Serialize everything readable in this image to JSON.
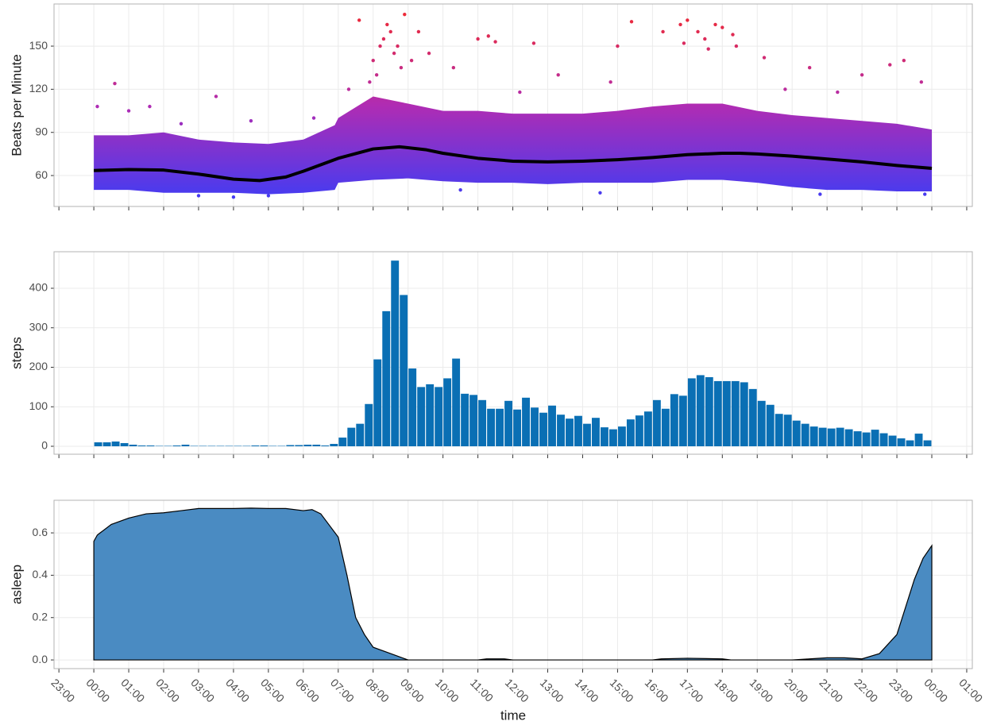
{
  "chart_data": [
    {
      "type": "scatter",
      "ylabel": "Beats per Minute",
      "xlim": [
        -1.14,
        25.16
      ],
      "ylim": [
        38.5,
        179.3
      ],
      "xticks": [
        -1,
        0,
        1,
        2,
        3,
        4,
        5,
        6,
        7,
        8,
        9,
        10,
        11,
        12,
        13,
        14,
        15,
        16,
        17,
        18,
        19,
        20,
        21,
        22,
        23,
        24,
        25
      ],
      "yticks": [
        60,
        90,
        120,
        150
      ],
      "grid": true,
      "color_scale": [
        "#3b3df7",
        "#b02cb3",
        "#f42a2a"
      ],
      "points": {
        "x": [
          8.2,
          8.5,
          8.4,
          8.6,
          8.0,
          8.8,
          7.6,
          8.9,
          9.3,
          9.6,
          11.0,
          11.3,
          11.5,
          12.6,
          15.0,
          15.4,
          16.3,
          16.8,
          17.0,
          17.3,
          17.5,
          17.8,
          18.0,
          18.3,
          18.4,
          19.2,
          20.5,
          22.0,
          22.8,
          23.2,
          23.7,
          0.1,
          0.6,
          1.0,
          1.6,
          3.5,
          4.5,
          6.3,
          7.3,
          10.3,
          13.3,
          14.8,
          21.3,
          4.0,
          5.0,
          3.0,
          10.5,
          14.5,
          20.8,
          23.8,
          8.3,
          8.7,
          8.1,
          17.6,
          16.9,
          9.1,
          7.9,
          12.2,
          19.8,
          2.5
        ],
        "y": [
          150,
          160,
          165,
          145,
          140,
          135,
          168,
          172,
          160,
          145,
          155,
          157,
          153,
          152,
          150,
          167,
          160,
          165,
          168,
          160,
          155,
          165,
          163,
          158,
          150,
          142,
          135,
          130,
          137,
          140,
          125,
          108,
          124,
          105,
          108,
          115,
          98,
          100,
          120,
          135,
          130,
          125,
          118,
          45,
          46,
          46,
          50,
          48,
          47,
          47,
          155,
          150,
          130,
          148,
          152,
          140,
          125,
          118,
          120,
          96
        ]
      },
      "band": {
        "x": [
          0,
          1,
          2,
          3,
          4,
          5,
          6,
          6.9,
          7,
          8,
          9,
          10,
          11,
          12,
          13,
          14,
          15,
          16,
          17,
          18,
          19,
          20,
          21,
          22,
          23,
          24
        ],
        "lower": [
          50,
          50,
          48,
          48,
          48,
          47,
          48,
          50,
          55,
          57,
          58,
          56,
          55,
          55,
          54,
          55,
          55,
          55,
          57,
          57,
          55,
          52,
          50,
          50,
          49,
          49
        ],
        "upper": [
          88,
          88,
          90,
          85,
          83,
          82,
          85,
          95,
          100,
          115,
          110,
          105,
          105,
          103,
          103,
          103,
          105,
          108,
          110,
          110,
          105,
          102,
          100,
          98,
          96,
          92
        ]
      },
      "smooth": {
        "color": "#000000",
        "x": [
          0,
          1,
          2,
          3,
          4,
          4.75,
          5.5,
          6,
          7,
          8,
          8.75,
          9.5,
          10,
          11,
          12,
          13,
          14,
          15,
          16,
          17,
          18,
          18.5,
          19,
          20,
          21,
          22,
          23,
          24
        ],
        "values": [
          63.5,
          64.2,
          63.8,
          61,
          57.5,
          56.5,
          59,
          63,
          72,
          78.5,
          80,
          78,
          75.5,
          72,
          70,
          69.5,
          70,
          71,
          72.5,
          74.5,
          75.5,
          75.5,
          75,
          73.5,
          71.5,
          69.5,
          67,
          65
        ]
      }
    },
    {
      "type": "bar",
      "ylabel": "steps",
      "color": "#0a6fb4",
      "xlim": [
        -1.14,
        25.16
      ],
      "ylim": [
        -20.1,
        492.5
      ],
      "xticks": [
        -1,
        0,
        1,
        2,
        3,
        4,
        5,
        6,
        7,
        8,
        9,
        10,
        11,
        12,
        13,
        14,
        15,
        16,
        17,
        18,
        19,
        20,
        21,
        22,
        23,
        24,
        25
      ],
      "yticks": [
        0,
        100,
        200,
        300,
        400
      ],
      "grid": true,
      "x": [
        0.125,
        0.375,
        0.625,
        0.875,
        1.125,
        1.375,
        1.625,
        1.875,
        2.125,
        2.375,
        2.625,
        2.875,
        3.125,
        3.375,
        3.625,
        3.875,
        4.125,
        4.375,
        4.625,
        4.875,
        5.125,
        5.375,
        5.625,
        5.875,
        6.125,
        6.375,
        6.625,
        6.875,
        7.125,
        7.375,
        7.625,
        7.875,
        8.125,
        8.375,
        8.625,
        8.875,
        9.125,
        9.375,
        9.625,
        9.875,
        10.125,
        10.375,
        10.625,
        10.875,
        11.125,
        11.375,
        11.625,
        11.875,
        12.125,
        12.375,
        12.625,
        12.875,
        13.125,
        13.375,
        13.625,
        13.875,
        14.125,
        14.375,
        14.625,
        14.875,
        15.125,
        15.375,
        15.625,
        15.875,
        16.125,
        16.375,
        16.625,
        16.875,
        17.125,
        17.375,
        17.625,
        17.875,
        18.125,
        18.375,
        18.625,
        18.875,
        19.125,
        19.375,
        19.625,
        19.875,
        20.125,
        20.375,
        20.625,
        20.875,
        21.125,
        21.375,
        21.625,
        21.875,
        22.125,
        22.375,
        22.625,
        22.875,
        23.125,
        23.375,
        23.625,
        23.875
      ],
      "values": [
        10,
        10,
        12,
        8,
        4,
        2,
        2,
        1,
        1,
        2,
        4,
        1,
        1,
        1,
        1,
        1,
        1,
        1,
        2,
        2,
        1,
        1,
        3,
        3,
        4,
        4,
        2,
        6,
        22,
        47,
        57,
        107,
        220,
        342,
        470,
        383,
        197,
        150,
        157,
        150,
        172,
        222,
        133,
        130,
        117,
        95,
        95,
        115,
        93,
        123,
        98,
        85,
        103,
        80,
        70,
        77,
        57,
        72,
        48,
        43,
        50,
        68,
        78,
        88,
        117,
        95,
        132,
        128,
        172,
        180,
        175,
        165,
        165,
        165,
        162,
        145,
        115,
        105,
        82,
        80,
        65,
        57,
        50,
        47,
        45,
        47,
        43,
        38,
        35,
        42,
        33,
        27,
        20,
        15,
        32,
        15
      ]
    },
    {
      "type": "area",
      "ylabel": "asleep",
      "xlabel": "time",
      "color": "#4a8bc2",
      "xlim": [
        -1.14,
        25.16
      ],
      "ylim": [
        -0.041,
        0.754
      ],
      "xticks": [
        {
          "value": -1,
          "label": "23:00"
        },
        {
          "value": 0,
          "label": "00:00"
        },
        {
          "value": 1,
          "label": "01:00"
        },
        {
          "value": 2,
          "label": "02:00"
        },
        {
          "value": 3,
          "label": "03:00"
        },
        {
          "value": 4,
          "label": "04:00"
        },
        {
          "value": 5,
          "label": "05:00"
        },
        {
          "value": 6,
          "label": "06:00"
        },
        {
          "value": 7,
          "label": "07:00"
        },
        {
          "value": 8,
          "label": "08:00"
        },
        {
          "value": 9,
          "label": "09:00"
        },
        {
          "value": 10,
          "label": "10:00"
        },
        {
          "value": 11,
          "label": "11:00"
        },
        {
          "value": 12,
          "label": "12:00"
        },
        {
          "value": 13,
          "label": "13:00"
        },
        {
          "value": 14,
          "label": "14:00"
        },
        {
          "value": 15,
          "label": "15:00"
        },
        {
          "value": 16,
          "label": "16:00"
        },
        {
          "value": 17,
          "label": "17:00"
        },
        {
          "value": 18,
          "label": "18:00"
        },
        {
          "value": 19,
          "label": "19:00"
        },
        {
          "value": 20,
          "label": "20:00"
        },
        {
          "value": 21,
          "label": "21:00"
        },
        {
          "value": 22,
          "label": "22:00"
        },
        {
          "value": 23,
          "label": "23:00"
        },
        {
          "value": 24,
          "label": "00:00"
        },
        {
          "value": 25,
          "label": "01:00"
        }
      ],
      "yticks": [
        {
          "value": 0,
          "label": "0.0"
        },
        0.2,
        0.4,
        0.6
      ],
      "grid": true,
      "x": [
        0,
        0.1,
        0.5,
        1,
        1.5,
        2,
        2.5,
        3,
        3.5,
        4,
        4.5,
        5,
        5.5,
        6,
        6.25,
        6.5,
        7,
        7.25,
        7.5,
        7.75,
        8,
        8.5,
        9,
        10,
        11,
        11.25,
        11.75,
        12,
        13,
        14,
        15,
        16,
        16.25,
        17,
        18,
        18.25,
        19,
        20,
        20.5,
        21,
        21.5,
        22,
        22.5,
        23,
        23.25,
        23.5,
        23.75,
        24
      ],
      "values": [
        0.56,
        0.59,
        0.64,
        0.67,
        0.69,
        0.695,
        0.705,
        0.715,
        0.715,
        0.715,
        0.717,
        0.715,
        0.715,
        0.705,
        0.71,
        0.69,
        0.58,
        0.4,
        0.2,
        0.12,
        0.06,
        0.03,
        0,
        0,
        0,
        0.005,
        0.005,
        0,
        0,
        0,
        0,
        0,
        0.005,
        0.008,
        0.005,
        0,
        0,
        0,
        0.005,
        0.01,
        0.01,
        0.005,
        0.03,
        0.12,
        0.25,
        0.38,
        0.48,
        0.54
      ]
    }
  ]
}
